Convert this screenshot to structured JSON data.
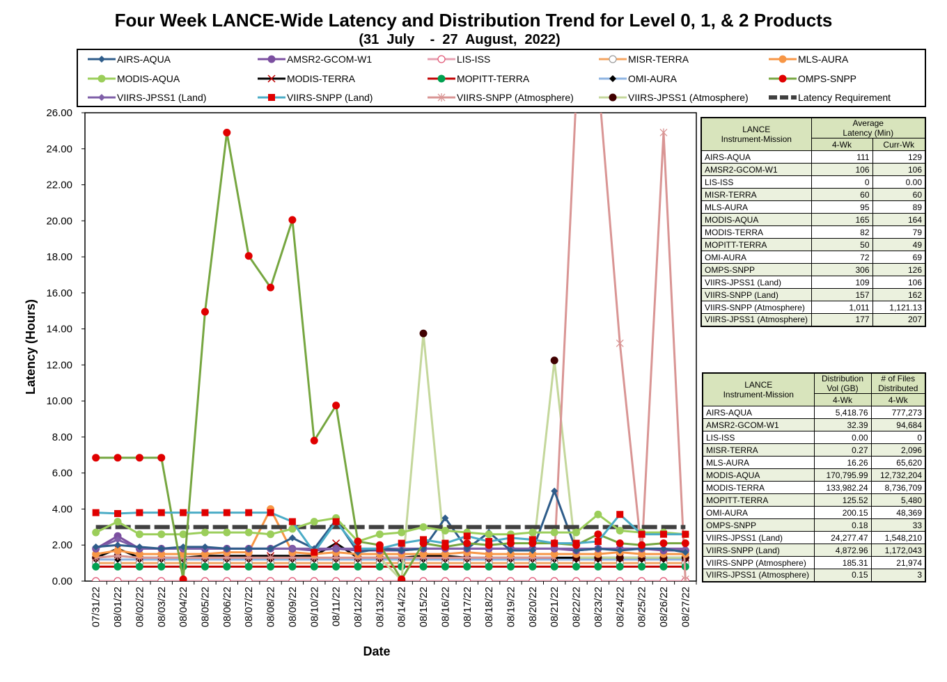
{
  "title": "Four Week LANCE-Wide Latency and Distribution Trend for Level 0, 1, & 2 Products",
  "subtitle": "(31  July    -  27  August,  2022)",
  "colors": {
    "AIRS-AQUA": "#2e5c8a",
    "AMSR2-GCOM-W1": "#7b4fa0",
    "LIS-ISS": "#e6a0b0",
    "MISR-TERRA": "#f4a460",
    "MLS-AURA": "#f79646",
    "MODIS-AQUA": "#9bce5a",
    "MODIS-TERRA": "#000000",
    "MOPITT-TERRA": "#c00000",
    "OMI-AURA": "#8db3e2",
    "OMPS-SNPP": "#76a640",
    "VIIRS-JPSS1 (Land)": "#7f5fa8",
    "VIIRS-SNPP (Land)": "#4bacc6",
    "VIIRS-SNPP (Atmosphere)": "#d99594",
    "VIIRS-JPSS1 (Atmosphere)": "#c4d79b",
    "Latency Requirement": "#404040"
  },
  "legend": [
    {
      "label": "AIRS-AQUA",
      "marker": "diamond",
      "mcolor": "#2e5c8a"
    },
    {
      "label": "AMSR2-GCOM-W1",
      "marker": "circle",
      "mcolor": "#7b4fa0"
    },
    {
      "label": "LIS-ISS",
      "marker": "circle-open",
      "mcolor": "#e05070"
    },
    {
      "label": "MISR-TERRA",
      "marker": "circle-open",
      "mcolor": "#999999"
    },
    {
      "label": "MLS-AURA",
      "marker": "circle",
      "mcolor": "#f79646"
    },
    {
      "label": "MODIS-AQUA",
      "marker": "circle",
      "mcolor": "#9bce5a"
    },
    {
      "label": "MODIS-TERRA",
      "marker": "x",
      "mcolor": "#c00000"
    },
    {
      "label": "MOPITT-TERRA",
      "marker": "circle",
      "mcolor": "#00a050"
    },
    {
      "label": "OMI-AURA",
      "marker": "diamond",
      "mcolor": "#000000"
    },
    {
      "label": "OMPS-SNPP",
      "marker": "circle",
      "mcolor": "#e00000"
    },
    {
      "label": "VIIRS-JPSS1 (Land)",
      "marker": "diamond",
      "mcolor": "#7f5fa8"
    },
    {
      "label": "VIIRS-SNPP (Land)",
      "marker": "square",
      "mcolor": "#e00000"
    },
    {
      "label": "VIIRS-SNPP (Atmosphere)",
      "marker": "star",
      "mcolor": "#d99594"
    },
    {
      "label": "VIIRS-JPSS1 (Atmosphere)",
      "marker": "circle",
      "mcolor": "#400000"
    },
    {
      "label": "Latency Requirement",
      "marker": "dash",
      "mcolor": "#404040"
    }
  ],
  "chart_data": {
    "type": "line",
    "xlabel": "Date",
    "ylabel": "Latency (Hours)",
    "ylim": [
      0,
      26
    ],
    "yticks": [
      "0.00",
      "2.00",
      "4.00",
      "6.00",
      "8.00",
      "10.00",
      "12.00",
      "14.00",
      "16.00",
      "18.00",
      "20.00",
      "22.00",
      "24.00",
      "26.00"
    ],
    "categories": [
      "07/31/22",
      "08/01/22",
      "08/02/22",
      "08/03/22",
      "08/04/22",
      "08/05/22",
      "08/06/22",
      "08/07/22",
      "08/08/22",
      "08/09/22",
      "08/10/22",
      "08/11/22",
      "08/12/22",
      "08/13/22",
      "08/14/22",
      "08/15/22",
      "08/16/22",
      "08/17/22",
      "08/18/22",
      "08/19/22",
      "08/20/22",
      "08/21/22",
      "08/22/22",
      "08/23/22",
      "08/24/22",
      "08/25/22",
      "08/26/22",
      "08/27/22"
    ],
    "grid": false,
    "legend_position": "top",
    "series": [
      {
        "name": "AIRS-AQUA",
        "values": [
          1.9,
          2.0,
          1.9,
          1.8,
          1.9,
          1.9,
          1.8,
          1.8,
          1.8,
          2.4,
          1.8,
          3.4,
          1.6,
          1.8,
          1.7,
          1.8,
          3.5,
          1.8,
          2.7,
          1.7,
          1.7,
          5.0,
          1.7,
          1.8,
          1.7,
          1.8,
          1.8,
          1.6
        ]
      },
      {
        "name": "AMSR2-GCOM-W1",
        "values": [
          1.8,
          2.5,
          1.8,
          1.8,
          1.8,
          1.8,
          1.8,
          1.8,
          1.8,
          1.8,
          1.7,
          1.8,
          1.7,
          1.7,
          1.7,
          1.8,
          1.8,
          1.8,
          1.8,
          1.8,
          1.8,
          1.8,
          1.7,
          1.8,
          1.8,
          1.8,
          1.7,
          1.7
        ]
      },
      {
        "name": "LIS-ISS",
        "values": [
          0,
          0,
          0,
          0,
          0,
          0,
          0,
          0,
          0,
          0,
          0,
          0,
          0,
          0,
          0,
          0,
          0,
          0,
          0,
          0,
          0,
          0,
          0,
          0,
          0,
          0,
          0,
          0
        ]
      },
      {
        "name": "MISR-TERRA",
        "values": [
          1.0,
          1.0,
          1.0,
          1.0,
          1.0,
          1.0,
          1.0,
          1.0,
          1.0,
          1.0,
          1.0,
          1.0,
          1.0,
          1.0,
          1.0,
          1.0,
          1.0,
          1.0,
          1.0,
          1.0,
          1.0,
          1.0,
          1.0,
          1.0,
          1.0,
          1.0,
          1.0,
          1.0
        ]
      },
      {
        "name": "MLS-AURA",
        "values": [
          1.5,
          1.7,
          1.5,
          1.5,
          1.5,
          1.5,
          1.6,
          1.6,
          4.0,
          1.6,
          1.5,
          1.6,
          1.5,
          1.5,
          1.5,
          1.5,
          1.5,
          1.6,
          1.5,
          1.5,
          1.5,
          1.5,
          1.5,
          1.5,
          1.6,
          1.5,
          1.5,
          1.5
        ]
      },
      {
        "name": "MODIS-AQUA",
        "values": [
          2.7,
          3.3,
          2.6,
          2.6,
          2.6,
          2.7,
          2.7,
          2.7,
          2.6,
          2.9,
          3.3,
          3.5,
          2.2,
          2.6,
          2.7,
          3.0,
          2.8,
          2.7,
          2.6,
          2.6,
          2.7,
          2.7,
          2.7,
          3.7,
          2.8,
          2.7,
          2.7,
          2.6
        ]
      },
      {
        "name": "MODIS-TERRA",
        "values": [
          1.3,
          1.8,
          1.3,
          1.3,
          1.3,
          1.4,
          1.4,
          1.4,
          1.4,
          1.4,
          1.4,
          2.1,
          1.3,
          1.3,
          1.3,
          1.4,
          1.4,
          1.3,
          1.3,
          1.3,
          1.3,
          1.3,
          1.3,
          1.3,
          1.3,
          1.3,
          1.3,
          1.3
        ]
      },
      {
        "name": "MOPITT-TERRA",
        "values": [
          0.8,
          0.8,
          0.8,
          0.8,
          0.8,
          0.8,
          0.8,
          0.8,
          0.8,
          0.8,
          0.8,
          0.8,
          0.8,
          0.8,
          0.8,
          0.8,
          0.8,
          0.8,
          0.8,
          0.8,
          0.8,
          0.8,
          0.8,
          0.8,
          0.8,
          0.8,
          0.8,
          0.8
        ]
      },
      {
        "name": "OMI-AURA",
        "values": [
          1.2,
          1.2,
          1.2,
          1.2,
          1.2,
          1.2,
          1.2,
          1.2,
          1.2,
          1.2,
          1.2,
          1.2,
          1.2,
          1.2,
          1.2,
          1.2,
          1.2,
          1.2,
          1.2,
          1.2,
          1.2,
          1.2,
          1.2,
          1.2,
          1.2,
          1.2,
          1.2,
          1.2
        ]
      },
      {
        "name": "OMPS-SNPP",
        "values": [
          6.85,
          6.85,
          6.85,
          6.85,
          0.1,
          14.95,
          24.9,
          18.05,
          16.3,
          20.05,
          7.8,
          9.75,
          2.2,
          2.0,
          0.1,
          2.1,
          1.9,
          2.1,
          2.0,
          2.1,
          2.1,
          2.1,
          2.0,
          2.6,
          2.1,
          2.0,
          2.1,
          2.1
        ]
      },
      {
        "name": "VIIRS-JPSS1 (Land)",
        "values": [
          1.8,
          2.3,
          1.8,
          1.8,
          1.8,
          1.8,
          1.8,
          1.8,
          1.8,
          1.8,
          1.8,
          1.8,
          1.8,
          1.8,
          1.8,
          1.8,
          1.8,
          1.8,
          1.8,
          1.8,
          1.8,
          1.8,
          1.8,
          1.8,
          1.8,
          1.8,
          1.8,
          1.8
        ]
      },
      {
        "name": "VIIRS-SNPP (Land)",
        "values": [
          3.8,
          3.75,
          3.8,
          3.8,
          3.8,
          3.8,
          3.8,
          3.8,
          3.8,
          3.3,
          1.6,
          3.3,
          1.8,
          1.8,
          2.1,
          2.3,
          2.1,
          2.5,
          2.2,
          2.4,
          2.3,
          2.1,
          2.1,
          2.2,
          3.7,
          2.6,
          2.6,
          2.6
        ]
      },
      {
        "name": "VIIRS-SNPP (Atmosphere)",
        "values": [
          1.3,
          1.4,
          1.3,
          1.3,
          1.3,
          1.3,
          1.3,
          1.3,
          1.3,
          1.3,
          1.3,
          1.3,
          1.3,
          1.3,
          1.3,
          1.3,
          1.3,
          1.3,
          1.3,
          1.3,
          1.3,
          1.3,
          27.0,
          28.0,
          13.2,
          1.5,
          24.9,
          0.1
        ]
      },
      {
        "name": "VIIRS-JPSS1 (Atmosphere)",
        "values": [
          1.3,
          1.4,
          1.3,
          1.3,
          1.3,
          1.3,
          1.3,
          1.3,
          1.3,
          1.3,
          1.3,
          1.3,
          1.3,
          1.3,
          0.05,
          13.75,
          1.3,
          1.3,
          1.3,
          1.3,
          1.3,
          12.25,
          1.3,
          1.3,
          1.3,
          1.3,
          1.3,
          1.3
        ]
      },
      {
        "name": "Latency Requirement",
        "values": [
          3.0,
          3.0,
          3.0,
          3.0,
          3.0,
          3.0,
          3.0,
          3.0,
          3.0,
          3.0,
          3.0,
          3.0,
          3.0,
          3.0,
          3.0,
          3.0,
          3.0,
          3.0,
          3.0,
          3.0,
          3.0,
          3.0,
          3.0,
          3.0,
          3.0,
          3.0,
          3.0,
          3.0
        ]
      }
    ]
  },
  "latency_table": {
    "header_col": "LANCE\nInstrument-Mission",
    "header_avg": "Average\nLatency (Min)",
    "sub_4wk": "4-Wk",
    "sub_curr": "Curr-Wk",
    "rows": [
      {
        "name": "AIRS-AQUA",
        "wk4": "111",
        "curr": "129"
      },
      {
        "name": "AMSR2-GCOM-W1",
        "wk4": "106",
        "curr": "106"
      },
      {
        "name": "LIS-ISS",
        "wk4": "0",
        "curr": "0.00"
      },
      {
        "name": "MISR-TERRA",
        "wk4": "60",
        "curr": "60"
      },
      {
        "name": "MLS-AURA",
        "wk4": "95",
        "curr": "89"
      },
      {
        "name": "MODIS-AQUA",
        "wk4": "165",
        "curr": "164"
      },
      {
        "name": "MODIS-TERRA",
        "wk4": "82",
        "curr": "79"
      },
      {
        "name": "MOPITT-TERRA",
        "wk4": "50",
        "curr": "49"
      },
      {
        "name": "OMI-AURA",
        "wk4": "72",
        "curr": "69"
      },
      {
        "name": "OMPS-SNPP",
        "wk4": "306",
        "curr": "126"
      },
      {
        "name": "VIIRS-JPSS1 (Land)",
        "wk4": "109",
        "curr": "106"
      },
      {
        "name": "VIIRS-SNPP (Land)",
        "wk4": "157",
        "curr": "162"
      },
      {
        "name": "VIIRS-SNPP (Atmosphere)",
        "wk4": "1,011",
        "curr": "1,121.13"
      },
      {
        "name": "VIIRS-JPSS1 (Atmosphere)",
        "wk4": "177",
        "curr": "207"
      }
    ]
  },
  "distribution_table": {
    "header_col": "LANCE\nInstrument-Mission",
    "header_vol": "Distribution\nVol (GB)",
    "header_files": "# of Files\nDistributed",
    "sub_vol": "4-Wk",
    "sub_files": "4-Wk",
    "rows": [
      {
        "name": "AIRS-AQUA",
        "vol": "5,418.76",
        "files": "777,273"
      },
      {
        "name": "AMSR2-GCOM-W1",
        "vol": "32.39",
        "files": "94,684"
      },
      {
        "name": "LIS-ISS",
        "vol": "0.00",
        "files": "0"
      },
      {
        "name": "MISR-TERRA",
        "vol": "0.27",
        "files": "2,096"
      },
      {
        "name": "MLS-AURA",
        "vol": "16.26",
        "files": "65,620"
      },
      {
        "name": "MODIS-AQUA",
        "vol": "170,795.99",
        "files": "12,732,204"
      },
      {
        "name": "MODIS-TERRA",
        "vol": "133,982.24",
        "files": "8,736,709"
      },
      {
        "name": "MOPITT-TERRA",
        "vol": "125.52",
        "files": "5,480"
      },
      {
        "name": "OMI-AURA",
        "vol": "200.15",
        "files": "48,369"
      },
      {
        "name": "OMPS-SNPP",
        "vol": "0.18",
        "files": "33"
      },
      {
        "name": "VIIRS-JPSS1 (Land)",
        "vol": "24,277.47",
        "files": "1,548,210"
      },
      {
        "name": "VIIRS-SNPP (Land)",
        "vol": "4,872.96",
        "files": "1,172,043"
      },
      {
        "name": "VIIRS-SNPP (Atmosphere)",
        "vol": "185.31",
        "files": "21,974"
      },
      {
        "name": "VIIRS-JPSS1 (Atmosphere)",
        "vol": "0.15",
        "files": "3"
      }
    ]
  }
}
